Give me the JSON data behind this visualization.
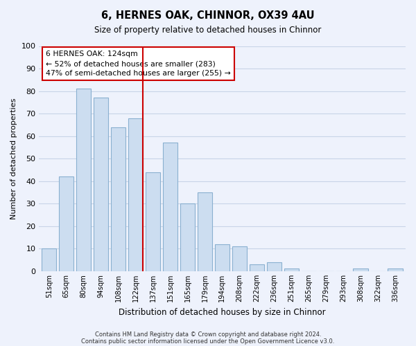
{
  "title": "6, HERNES OAK, CHINNOR, OX39 4AU",
  "subtitle": "Size of property relative to detached houses in Chinnor",
  "xlabel": "Distribution of detached houses by size in Chinnor",
  "ylabel": "Number of detached properties",
  "bar_labels": [
    "51sqm",
    "65sqm",
    "80sqm",
    "94sqm",
    "108sqm",
    "122sqm",
    "137sqm",
    "151sqm",
    "165sqm",
    "179sqm",
    "194sqm",
    "208sqm",
    "222sqm",
    "236sqm",
    "251sqm",
    "265sqm",
    "279sqm",
    "293sqm",
    "308sqm",
    "322sqm",
    "336sqm"
  ],
  "bar_values": [
    10,
    42,
    81,
    77,
    64,
    68,
    44,
    57,
    30,
    35,
    12,
    11,
    3,
    4,
    1,
    0,
    0,
    0,
    1,
    0,
    1
  ],
  "bar_color": "#ccddf0",
  "bar_edge_color": "#8ab0d0",
  "vline_x_index": 5,
  "vline_color": "#cc0000",
  "ylim": [
    0,
    100
  ],
  "yticks": [
    0,
    10,
    20,
    30,
    40,
    50,
    60,
    70,
    80,
    90,
    100
  ],
  "annotation_title": "6 HERNES OAK: 124sqm",
  "annotation_line1": "← 52% of detached houses are smaller (283)",
  "annotation_line2": "47% of semi-detached houses are larger (255) →",
  "annotation_box_color": "white",
  "annotation_box_edge": "#cc0000",
  "footer_line1": "Contains HM Land Registry data © Crown copyright and database right 2024.",
  "footer_line2": "Contains public sector information licensed under the Open Government Licence v3.0.",
  "background_color": "#eef2fc",
  "grid_color": "#c8d4e8",
  "bar_width": 0.85
}
